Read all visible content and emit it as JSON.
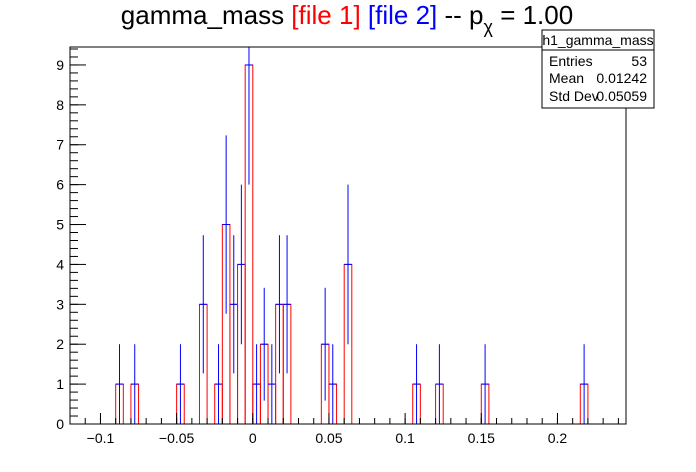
{
  "chart_data": {
    "type": "bar",
    "histogram_name": "h1_gamma_mass",
    "title_parts": {
      "prefix": "gamma_mass ",
      "file1": "[file 1]",
      "sep": " ",
      "file2": "[file 2]",
      "mid": " -- p",
      "sub": "χ",
      "suffix": " = 1.00"
    },
    "colors": {
      "file1": "#ff0000",
      "file2": "#0000ff",
      "axis": "#000000"
    },
    "xlim": [
      -0.12,
      0.245
    ],
    "ylim": [
      0,
      9.45
    ],
    "bin_width": 0.005,
    "x_ticks": [
      "−0.1",
      "−0.05",
      "0",
      "0.05",
      "0.1",
      "0.15",
      "0.2"
    ],
    "x_tick_values": [
      -0.1,
      -0.05,
      0,
      0.05,
      0.1,
      0.15,
      0.2
    ],
    "y_ticks": [
      0,
      1,
      2,
      3,
      4,
      5,
      6,
      7,
      8,
      9
    ],
    "x_minor_step": 0.01,
    "y_minor_step": 0.2,
    "bins": [
      {
        "x": -0.0875,
        "value": 1
      },
      {
        "x": -0.0775,
        "value": 1
      },
      {
        "x": -0.0475,
        "value": 1
      },
      {
        "x": -0.0325,
        "value": 3
      },
      {
        "x": -0.0225,
        "value": 1
      },
      {
        "x": -0.0175,
        "value": 5
      },
      {
        "x": -0.0125,
        "value": 3
      },
      {
        "x": -0.0075,
        "value": 4
      },
      {
        "x": -0.0025,
        "value": 9
      },
      {
        "x": 0.0025,
        "value": 1
      },
      {
        "x": 0.0075,
        "value": 2
      },
      {
        "x": 0.0125,
        "value": 1
      },
      {
        "x": 0.0175,
        "value": 3
      },
      {
        "x": 0.0225,
        "value": 3
      },
      {
        "x": 0.0475,
        "value": 2
      },
      {
        "x": 0.0525,
        "value": 1
      },
      {
        "x": 0.0625,
        "value": 4
      },
      {
        "x": 0.1075,
        "value": 1
      },
      {
        "x": 0.1225,
        "value": 1
      },
      {
        "x": 0.1525,
        "value": 1
      },
      {
        "x": 0.2175,
        "value": 1
      }
    ],
    "stats": {
      "title": "h1_gamma_mass",
      "rows": [
        {
          "label": "Entries",
          "value": "53"
        },
        {
          "label": "Mean",
          "value": "0.01242"
        },
        {
          "label": "Std Dev",
          "value": "0.05059"
        }
      ]
    }
  }
}
